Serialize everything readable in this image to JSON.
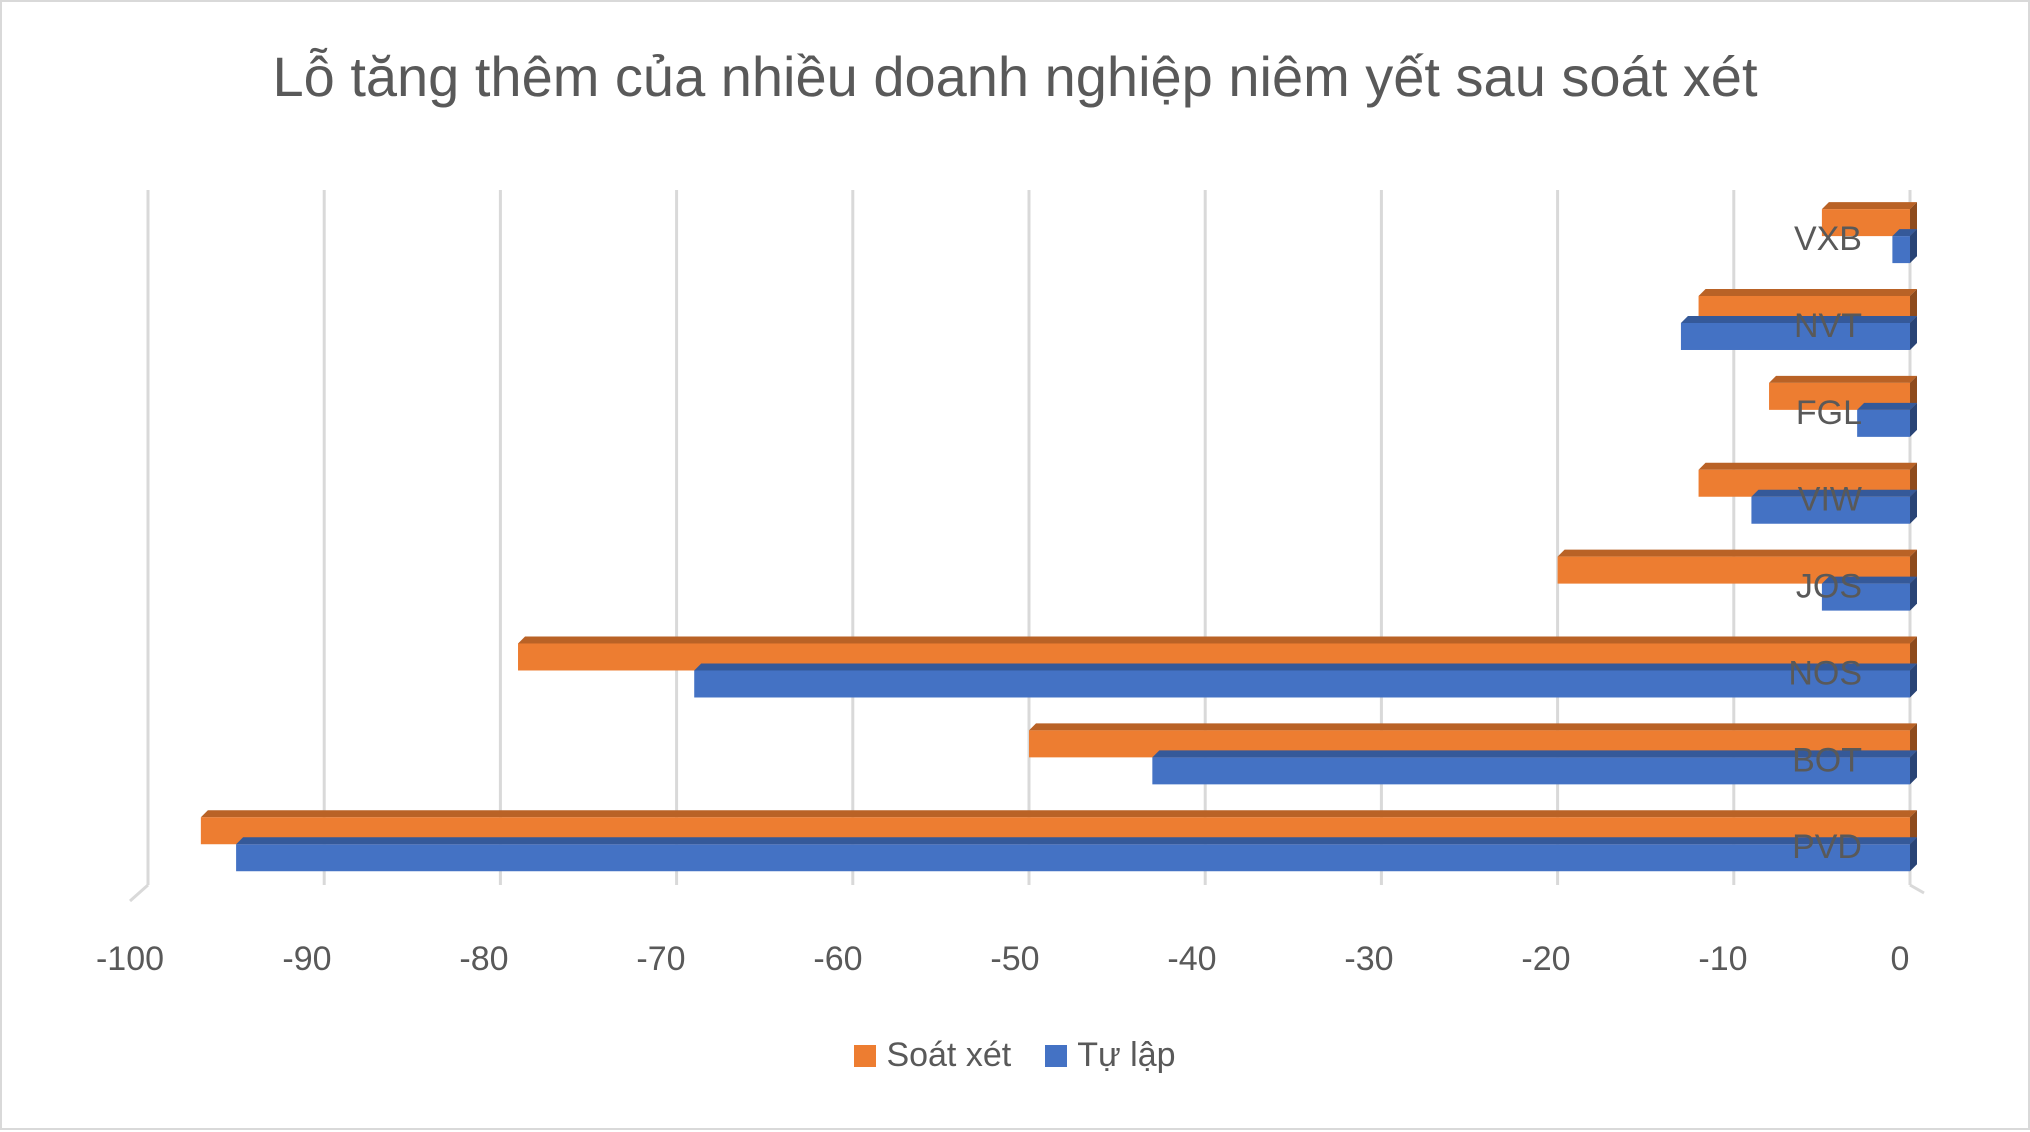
{
  "chart_data": {
    "type": "bar",
    "orientation": "horizontal",
    "title": "Lỗ tăng thêm của nhiều doanh nghiệp niêm yết sau soát xét",
    "categories": [
      "PVD",
      "BOT",
      "NOS",
      "JOS",
      "VIW",
      "FGL",
      "NVT",
      "VXB"
    ],
    "series": [
      {
        "name": "Soát xét",
        "color": "#ED7D31",
        "values": [
          -97,
          -50,
          -79,
          -20,
          -12,
          -8,
          -12,
          -5
        ]
      },
      {
        "name": "Tự lập",
        "color": "#4472C4",
        "values": [
          -95,
          -43,
          -69,
          -5,
          -9,
          -3,
          -13,
          -1
        ]
      }
    ],
    "xlim": [
      -100,
      0
    ],
    "xticks": [
      -100,
      -90,
      -80,
      -70,
      -60,
      -50,
      -40,
      -30,
      -20,
      -10,
      0
    ],
    "grid": true,
    "legend_position": "bottom"
  }
}
